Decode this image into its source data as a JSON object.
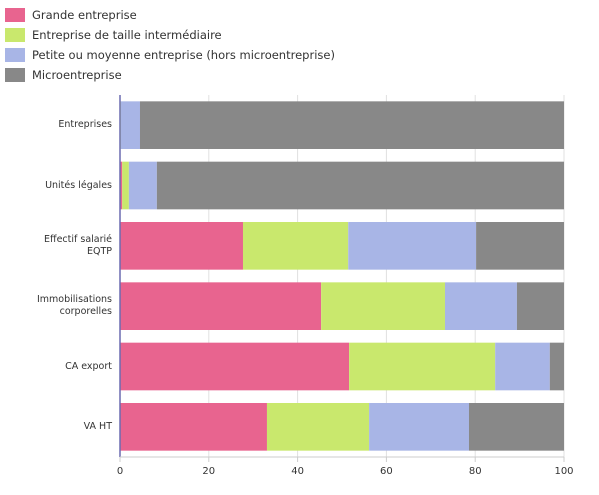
{
  "chart_data": {
    "type": "stacked-bar-horizontal",
    "categories": [
      "Entreprises",
      "Unités légales",
      "Effectif salarié EQTP",
      "Immobilisations corporelles",
      "CA export",
      "VA HT"
    ],
    "series": [
      {
        "name": "Grande entreprise",
        "color": "#e8648f",
        "values": [
          0,
          0.5,
          27.7,
          45.3,
          51.6,
          33.1
        ]
      },
      {
        "name": "Entreprise de taille intermédiaire",
        "color": "#c9e86d",
        "values": [
          0.2,
          1.5,
          23.7,
          27.9,
          32.9,
          23.0
        ]
      },
      {
        "name": "Petite ou moyenne entreprise (hors microentreprise)",
        "color": "#a8b5e6",
        "values": [
          4.3,
          6.3,
          28.8,
          16.2,
          12.3,
          22.5
        ]
      },
      {
        "name": "Microentreprise",
        "color": "#888888",
        "values": [
          95.5,
          91.7,
          19.8,
          10.6,
          3.2,
          21.4
        ]
      }
    ],
    "xlim": [
      0,
      100
    ],
    "xticks": [
      0,
      20,
      40,
      60,
      80,
      100
    ],
    "grid": true
  }
}
